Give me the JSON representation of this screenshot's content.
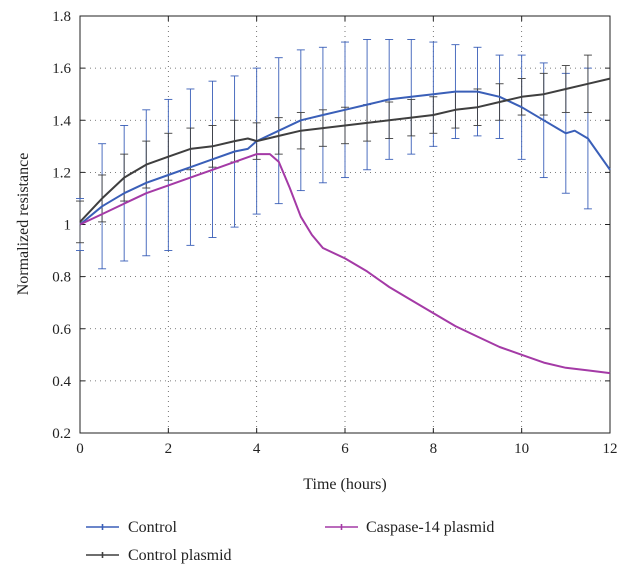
{
  "chart_data": {
    "type": "line",
    "title": "",
    "xlabel": "Time (hours)",
    "ylabel": "Normalized resistance",
    "xlim": [
      0,
      12
    ],
    "ylim": [
      0.2,
      1.8
    ],
    "x_ticks": [
      0,
      2,
      4,
      6,
      8,
      10,
      12
    ],
    "x_tick_labels": [
      "0",
      "2",
      "4",
      "6",
      "8",
      "10",
      "12"
    ],
    "y_ticks": [
      0.2,
      0.4,
      0.6,
      0.8,
      1.0,
      1.2,
      1.4,
      1.6,
      1.8
    ],
    "y_tick_labels": [
      "0.2",
      "0.4",
      "0.6",
      "0.8",
      "1",
      "1.2",
      "1.4",
      "1.6",
      "1.8"
    ],
    "grid": true,
    "legend_position": "bottom",
    "series": [
      {
        "name": "Control",
        "color": "#3a5fb8",
        "x": [
          0,
          0.5,
          1,
          1.5,
          2,
          2.5,
          3,
          3.5,
          3.8,
          4,
          4.5,
          5,
          5.5,
          6,
          6.5,
          7,
          7.5,
          8,
          8.5,
          9,
          9.5,
          10,
          10.5,
          10.8,
          11,
          11.2,
          11.5,
          12
        ],
        "y": [
          1.0,
          1.07,
          1.12,
          1.16,
          1.19,
          1.22,
          1.25,
          1.28,
          1.29,
          1.32,
          1.36,
          1.4,
          1.42,
          1.44,
          1.46,
          1.48,
          1.49,
          1.5,
          1.51,
          1.51,
          1.49,
          1.45,
          1.4,
          1.37,
          1.35,
          1.36,
          1.33,
          1.21
        ],
        "error_x": [
          0,
          0.5,
          1,
          1.5,
          2,
          2.5,
          3,
          3.5,
          4,
          4.5,
          5,
          5.5,
          6,
          6.5,
          7,
          7.5,
          8,
          8.5,
          9,
          9.5,
          10,
          10.5,
          11,
          11.5
        ],
        "error_y": [
          0.1,
          0.24,
          0.26,
          0.28,
          0.29,
          0.3,
          0.3,
          0.29,
          0.28,
          0.28,
          0.27,
          0.26,
          0.26,
          0.25,
          0.23,
          0.22,
          0.2,
          0.18,
          0.17,
          0.16,
          0.2,
          0.22,
          0.23,
          0.27
        ]
      },
      {
        "name": "Control plasmid",
        "color": "#3f3f3f",
        "x": [
          0,
          0.5,
          1,
          1.5,
          2,
          2.5,
          3,
          3.5,
          3.8,
          4,
          4.5,
          5,
          5.5,
          6,
          6.5,
          7,
          7.5,
          8,
          8.5,
          9,
          9.5,
          10,
          10.5,
          11,
          11.5,
          12
        ],
        "y": [
          1.01,
          1.1,
          1.18,
          1.23,
          1.26,
          1.29,
          1.3,
          1.32,
          1.33,
          1.32,
          1.34,
          1.36,
          1.37,
          1.38,
          1.39,
          1.4,
          1.41,
          1.42,
          1.44,
          1.45,
          1.47,
          1.49,
          1.5,
          1.52,
          1.54,
          1.56
        ],
        "error_x": [
          0,
          0.5,
          1,
          1.5,
          2,
          2.5,
          3,
          3.5,
          4,
          4.5,
          5,
          5.5,
          6,
          6.5,
          7,
          7.5,
          8,
          8.5,
          9,
          9.5,
          10,
          10.5,
          11,
          11.5
        ],
        "error_y": [
          0.08,
          0.09,
          0.09,
          0.09,
          0.09,
          0.08,
          0.08,
          0.08,
          0.07,
          0.07,
          0.07,
          0.07,
          0.07,
          0.07,
          0.07,
          0.07,
          0.07,
          0.07,
          0.07,
          0.07,
          0.07,
          0.08,
          0.09,
          0.11
        ]
      },
      {
        "name": "Caspase-14 plasmid",
        "color": "#a43aa6",
        "x": [
          0,
          0.5,
          1,
          1.5,
          2,
          2.5,
          3,
          3.5,
          4,
          4.3,
          4.5,
          4.75,
          5,
          5.25,
          5.5,
          6,
          6.5,
          7,
          7.5,
          8,
          8.5,
          9,
          9.5,
          10,
          10.5,
          11,
          11.5,
          12
        ],
        "y": [
          1.0,
          1.04,
          1.08,
          1.12,
          1.15,
          1.18,
          1.21,
          1.24,
          1.27,
          1.27,
          1.24,
          1.14,
          1.03,
          0.96,
          0.91,
          0.87,
          0.82,
          0.76,
          0.71,
          0.66,
          0.61,
          0.57,
          0.53,
          0.5,
          0.47,
          0.45,
          0.44,
          0.43
        ]
      }
    ]
  }
}
